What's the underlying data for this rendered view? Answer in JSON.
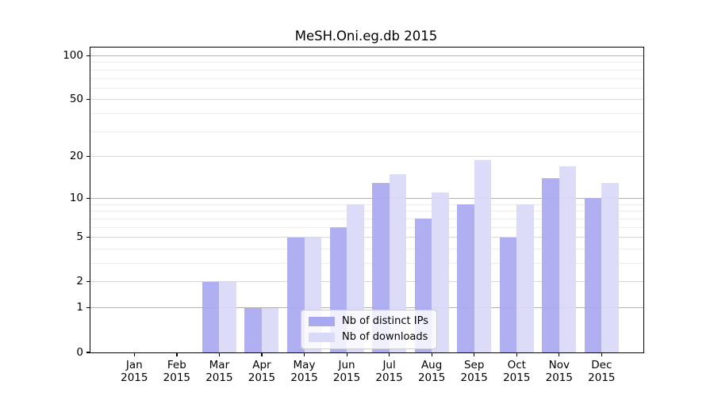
{
  "title": "MeSH.Oni.eg.db 2015",
  "chart_data": {
    "type": "bar",
    "title": "MeSH.Oni.eg.db 2015",
    "xlabel": "",
    "ylabel": "",
    "year": "2015",
    "categories": [
      "Jan",
      "Feb",
      "Mar",
      "Apr",
      "May",
      "Jun",
      "Jul",
      "Aug",
      "Sep",
      "Oct",
      "Nov",
      "Dec"
    ],
    "series": [
      {
        "name": "Nb of distinct IPs",
        "color": "#a9a9f1",
        "values": [
          0,
          0,
          2,
          1,
          5,
          6,
          13,
          7,
          9,
          5,
          14,
          10
        ]
      },
      {
        "name": "Nb of downloads",
        "color": "#d9d9f8",
        "values": [
          0,
          0,
          2,
          1,
          5,
          9,
          15,
          11,
          19,
          9,
          17,
          13
        ]
      }
    ],
    "y_axis": {
      "scale": "log10(1+x)",
      "tick_values": [
        0,
        1,
        2,
        5,
        10,
        20,
        50,
        100
      ],
      "decade_gridlines": [
        1,
        10,
        100
      ],
      "mid_gridlines": [
        2,
        5,
        20,
        50
      ],
      "minor_gridlines": [
        3,
        4,
        6,
        7,
        8,
        9,
        30,
        40,
        60,
        70,
        80,
        90
      ],
      "ylim_top": 113
    },
    "grid": "on",
    "legend_position": "bottom-center",
    "colors": {
      "grid_decade": "#b0b0b0",
      "grid_mid": "#d8d8d8",
      "grid_minor": "#ededed",
      "spine": "#000000"
    }
  }
}
